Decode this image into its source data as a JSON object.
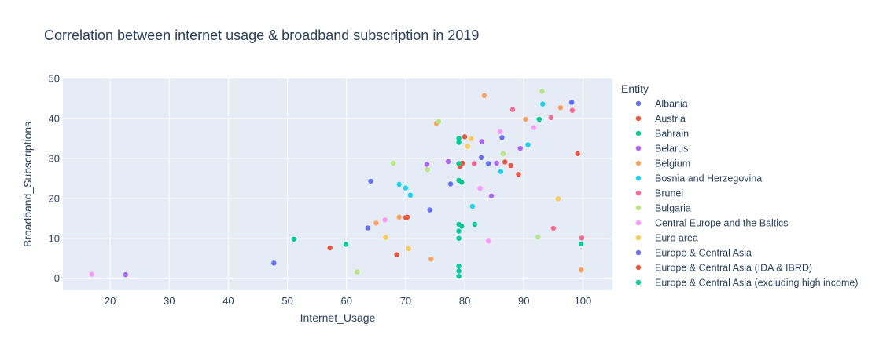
{
  "chart_data": {
    "type": "scatter",
    "title": "Correlation between internet usage & broadband subscription in 2019",
    "xlabel": "Internet_Usage",
    "ylabel": "Broadband_Subscriptions",
    "xlim": [
      12,
      105
    ],
    "ylim": [
      -3,
      50
    ],
    "xticks": [
      20,
      30,
      40,
      50,
      60,
      70,
      80,
      90,
      100
    ],
    "yticks": [
      0,
      10,
      20,
      30,
      40,
      50
    ],
    "grid": true,
    "legend_title": "Entity",
    "legend_position": "right",
    "series": [
      {
        "name": "Albania",
        "color": "#636efa",
        "points": [
          [
            47.7,
            3.8
          ],
          [
            64.1,
            24.3
          ],
          [
            98.1,
            44.0
          ]
        ]
      },
      {
        "name": "Austria",
        "color": "#ef553b",
        "points": [
          [
            57.2,
            7.6
          ],
          [
            68.5,
            5.9
          ],
          [
            70.0,
            15.2
          ],
          [
            79.2,
            28.0
          ],
          [
            99.1,
            31.2
          ]
        ]
      },
      {
        "name": "Bahrain",
        "color": "#00cc96",
        "points": [
          [
            51.1,
            9.8
          ],
          [
            59.9,
            8.5
          ],
          [
            81.7,
            13.5
          ],
          [
            92.6,
            39.8
          ],
          [
            99.7,
            8.6
          ]
        ]
      },
      {
        "name": "Belarus",
        "color": "#ab63fa",
        "points": [
          [
            22.6,
            0.9
          ],
          [
            73.6,
            28.5
          ],
          [
            77.2,
            29.2
          ],
          [
            82.9,
            34.2
          ],
          [
            84.5,
            20.6
          ],
          [
            85.4,
            28.8
          ],
          [
            89.4,
            32.5
          ]
        ]
      },
      {
        "name": "Belgium",
        "color": "#ffa15a",
        "points": [
          [
            65.0,
            13.8
          ],
          [
            68.9,
            15.3
          ],
          [
            74.3,
            4.8
          ],
          [
            75.2,
            38.8
          ],
          [
            83.3,
            45.7
          ],
          [
            90.3,
            39.8
          ],
          [
            96.2,
            42.7
          ],
          [
            99.7,
            2.1
          ]
        ]
      },
      {
        "name": "Bosnia and Herzegovina",
        "color": "#19d3f3",
        "points": [
          [
            68.9,
            23.5
          ],
          [
            70.0,
            22.6
          ],
          [
            70.8,
            20.8
          ],
          [
            81.3,
            18.0
          ],
          [
            86.1,
            26.7
          ],
          [
            90.7,
            33.4
          ],
          [
            93.2,
            43.6
          ]
        ]
      },
      {
        "name": "Brunei",
        "color": "#ff6692",
        "points": [
          [
            81.6,
            28.7
          ],
          [
            88.1,
            42.2
          ],
          [
            94.6,
            40.2
          ],
          [
            95.0,
            12.5
          ],
          [
            98.2,
            42.0
          ],
          [
            99.8,
            10.1
          ]
        ]
      },
      {
        "name": "Bulgaria",
        "color": "#b6e880",
        "points": [
          [
            61.8,
            1.6
          ],
          [
            67.9,
            28.8
          ],
          [
            73.7,
            27.2
          ],
          [
            75.6,
            39.2
          ],
          [
            86.5,
            31.2
          ],
          [
            92.4,
            10.3
          ],
          [
            93.1,
            46.8
          ]
        ]
      },
      {
        "name": "Central Europe and the Baltics",
        "color": "#ff97ff",
        "points": [
          [
            16.9,
            1.0
          ],
          [
            66.5,
            14.6
          ],
          [
            84.0,
            9.3
          ],
          [
            86.0,
            36.7
          ],
          [
            91.7,
            37.7
          ],
          [
            82.6,
            22.5
          ]
        ]
      },
      {
        "name": "Euro area",
        "color": "#fecb52",
        "points": [
          [
            66.6,
            10.2
          ],
          [
            70.5,
            7.4
          ],
          [
            80.5,
            33.0
          ],
          [
            81.1,
            34.9
          ],
          [
            95.8,
            19.9
          ]
        ]
      },
      {
        "name": "Europe & Central Asia",
        "color": "#636efa",
        "points": [
          [
            63.6,
            12.6
          ],
          [
            74.1,
            17.1
          ],
          [
            77.6,
            23.6
          ],
          [
            84.0,
            28.7
          ],
          [
            82.8,
            30.2
          ],
          [
            86.3,
            35.2
          ]
        ]
      },
      {
        "name": "Europe & Central Asia (IDA & IBRD)",
        "color": "#ef553b",
        "points": [
          [
            70.3,
            15.3
          ],
          [
            79.6,
            28.8
          ],
          [
            86.8,
            29.1
          ],
          [
            87.8,
            28.2
          ],
          [
            89.1,
            26.0
          ],
          [
            80.0,
            35.4
          ]
        ]
      },
      {
        "name": "Europe & Central Asia (excluding high income)",
        "color": "#00cc96",
        "points": [
          [
            79.0,
            35.0
          ],
          [
            79.0,
            34.0
          ],
          [
            79.0,
            28.7
          ],
          [
            79.0,
            24.5
          ],
          [
            79.0,
            13.5
          ],
          [
            79.0,
            11.8
          ],
          [
            79.0,
            10.0
          ],
          [
            79.0,
            3.0
          ],
          [
            79.0,
            1.8
          ],
          [
            79.0,
            0.5
          ],
          [
            79.5,
            24.0
          ],
          [
            79.5,
            13.0
          ]
        ]
      }
    ]
  }
}
